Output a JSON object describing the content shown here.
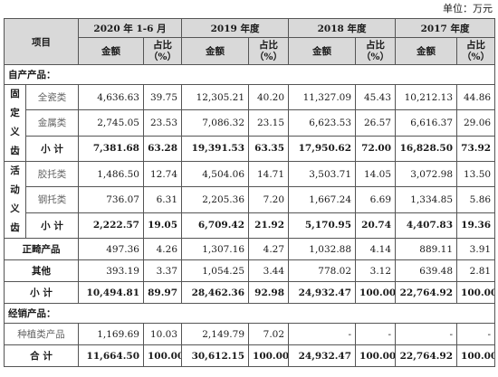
{
  "unit_label": "单位：万元",
  "header": {
    "item": "项目",
    "periods": [
      "2020 年 1-6 月",
      "2019 年度",
      "2018 年度",
      "2017 年度"
    ],
    "amount": "金额",
    "ratio_top": "占比",
    "ratio_bottom": "（%）"
  },
  "sections": {
    "own": "自产产品：",
    "dist": "经销产品："
  },
  "groups": {
    "fixed": [
      "固",
      "定",
      "义",
      "齿"
    ],
    "active": [
      "活",
      "动",
      "义",
      "齿"
    ]
  },
  "rows": {
    "ceramic": {
      "label": "全瓷类",
      "v": [
        "4,636.63",
        "39.75",
        "12,305.21",
        "40.20",
        "11,327.09",
        "45.43",
        "10,212.13",
        "44.86"
      ]
    },
    "metal": {
      "label": "金属类",
      "v": [
        "2,745.05",
        "23.53",
        "7,086.32",
        "23.15",
        "6,623.53",
        "26.57",
        "6,616.37",
        "29.06"
      ]
    },
    "fixed_sub": {
      "label": "小  计",
      "v": [
        "7,381.68",
        "63.28",
        "19,391.53",
        "63.35",
        "17,950.62",
        "72.00",
        "16,828.50",
        "73.92"
      ]
    },
    "resin": {
      "label": "胶托类",
      "v": [
        "1,486.50",
        "12.74",
        "4,504.06",
        "14.71",
        "3,503.71",
        "14.05",
        "3,072.98",
        "13.50"
      ]
    },
    "steel": {
      "label": "钢托类",
      "v": [
        "736.07",
        "6.31",
        "2,205.36",
        "7.20",
        "1,667.24",
        "6.69",
        "1,334.85",
        "5.86"
      ]
    },
    "active_sub": {
      "label": "小  计",
      "v": [
        "2,222.57",
        "19.05",
        "6,709.42",
        "21.92",
        "5,170.95",
        "20.74",
        "4,407.83",
        "19.36"
      ]
    },
    "ortho": {
      "label": "正畸产品",
      "v": [
        "497.36",
        "4.26",
        "1,307.16",
        "4.27",
        "1,032.88",
        "4.14",
        "889.11",
        "3.91"
      ]
    },
    "other": {
      "label": "其他",
      "v": [
        "393.19",
        "3.37",
        "1,054.25",
        "3.44",
        "778.02",
        "3.12",
        "639.48",
        "2.81"
      ]
    },
    "own_sub": {
      "label": "小  计",
      "v": [
        "10,494.81",
        "89.97",
        "28,462.36",
        "92.98",
        "24,932.47",
        "100.00",
        "22,764.92",
        "100.00"
      ]
    },
    "implant": {
      "label": "种植类产品",
      "v": [
        "1,169.69",
        "10.03",
        "2,149.79",
        "7.02",
        "-",
        "-",
        "-",
        "-"
      ]
    },
    "total": {
      "label": "合  计",
      "v": [
        "11,664.50",
        "100.00",
        "30,612.15",
        "100.00",
        "24,932.47",
        "100.00",
        "22,764.92",
        "100.00"
      ]
    }
  }
}
